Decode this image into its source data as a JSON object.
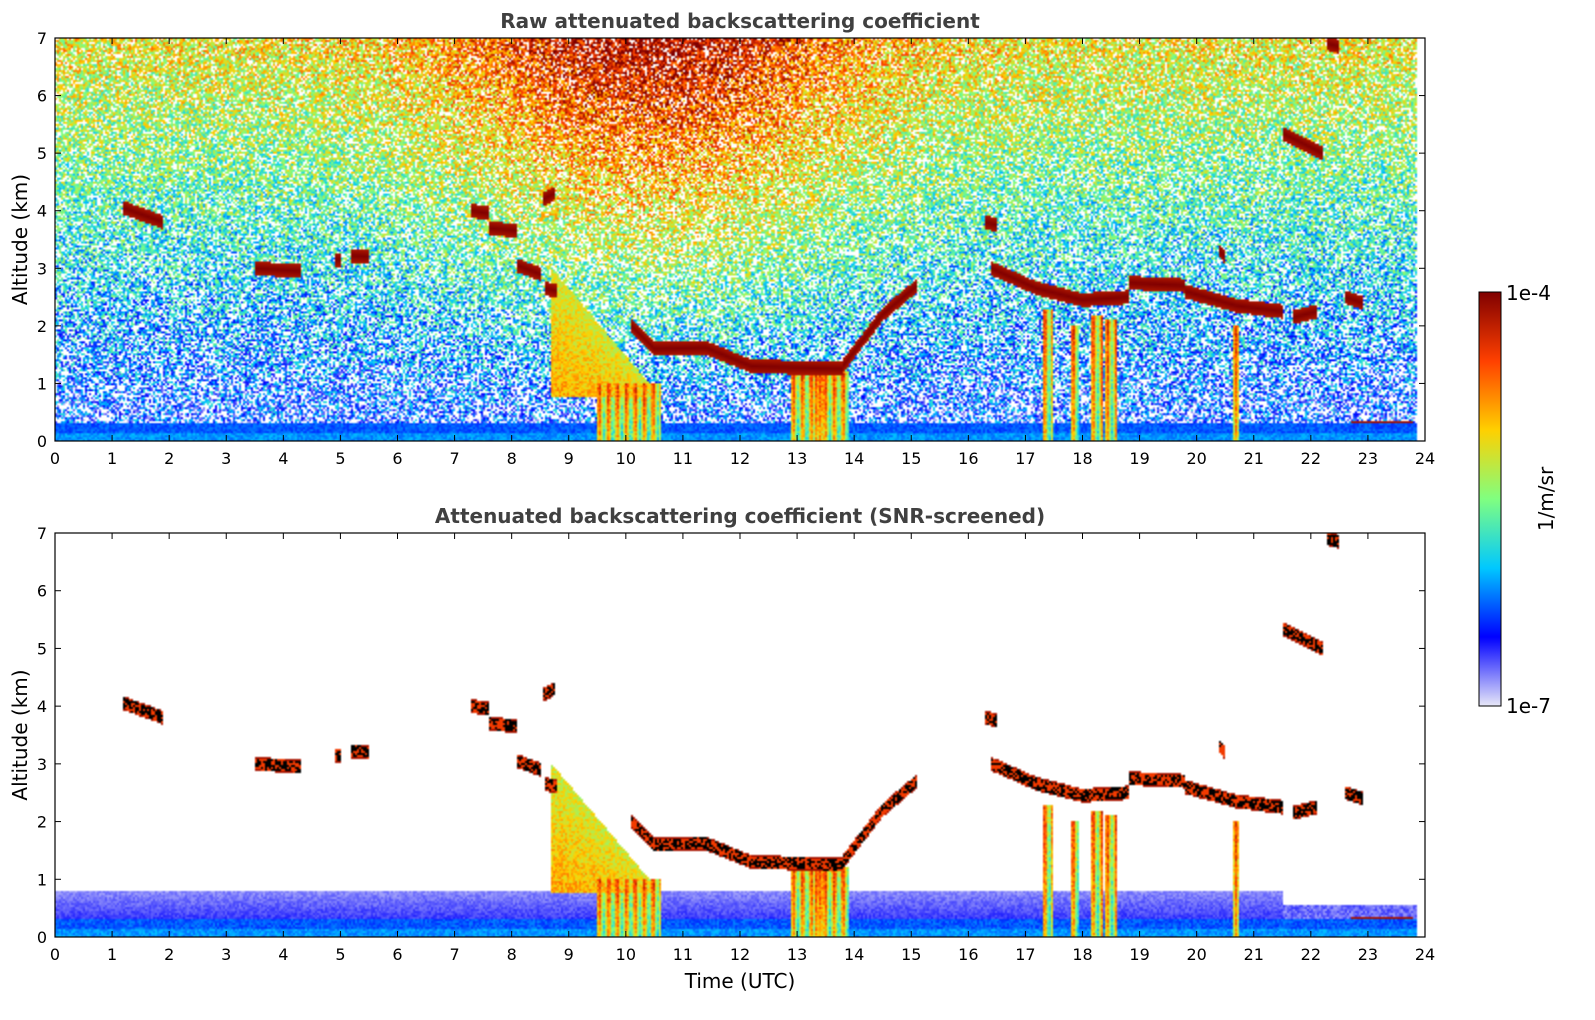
{
  "chart_data": [
    {
      "type": "heatmap",
      "title": "Raw attenuated backscattering coefficient",
      "xlabel": "",
      "ylabel": "Altitude (km)",
      "xlim": [
        0,
        24
      ],
      "ylim": [
        0,
        7
      ],
      "xticks": [
        "0",
        "1",
        "2",
        "3",
        "4",
        "5",
        "6",
        "7",
        "8",
        "9",
        "10",
        "11",
        "12",
        "13",
        "14",
        "15",
        "16",
        "17",
        "18",
        "19",
        "20",
        "21",
        "22",
        "23",
        "24"
      ],
      "yticks": [
        "0",
        "1",
        "2",
        "3",
        "4",
        "5",
        "6",
        "7"
      ],
      "screened": false,
      "grid": false
    },
    {
      "type": "heatmap",
      "title": "Attenuated backscattering coefficient (SNR-screened)",
      "xlabel": "Time (UTC)",
      "ylabel": "Altitude (km)",
      "xlim": [
        0,
        24
      ],
      "ylim": [
        0,
        7
      ],
      "xticks": [
        "0",
        "1",
        "2",
        "3",
        "4",
        "5",
        "6",
        "7",
        "8",
        "9",
        "10",
        "11",
        "12",
        "13",
        "14",
        "15",
        "16",
        "17",
        "18",
        "19",
        "20",
        "21",
        "22",
        "23",
        "24"
      ],
      "yticks": [
        "0",
        "1",
        "2",
        "3",
        "4",
        "5",
        "6",
        "7"
      ],
      "screened": true,
      "grid": false
    }
  ],
  "colorbar": {
    "label": "1/m/sr",
    "max_label": "1e-4",
    "min_label": "1e-7",
    "scale": "log",
    "colormap": "jet",
    "colors": [
      "#e8e8f8",
      "#0000ff",
      "#00c8ff",
      "#80ff80",
      "#ffd000",
      "#ff4000",
      "#800000"
    ]
  },
  "features": {
    "cloud_layers": [
      {
        "t0": 1.2,
        "t1": 1.9,
        "h0": 4.05,
        "h1": 3.8
      },
      {
        "t0": 3.5,
        "t1": 4.3,
        "h0": 3.0,
        "h1": 2.95
      },
      {
        "t0": 4.9,
        "t1": 5.0,
        "h0": 3.15,
        "h1": 3.15
      },
      {
        "t0": 5.2,
        "t1": 5.5,
        "h0": 3.22,
        "h1": 3.2
      },
      {
        "t0": 7.3,
        "t1": 7.6,
        "h0": 4.0,
        "h1": 3.95
      },
      {
        "t0": 7.6,
        "t1": 8.1,
        "h0": 3.7,
        "h1": 3.65
      },
      {
        "t0": 8.55,
        "t1": 8.75,
        "h0": 4.2,
        "h1": 4.3
      },
      {
        "t0": 8.1,
        "t1": 8.5,
        "h0": 3.05,
        "h1": 2.9
      },
      {
        "t0": 8.6,
        "t1": 8.8,
        "h0": 2.65,
        "h1": 2.6
      },
      {
        "t0": 10.1,
        "t1": 10.5,
        "h0": 2.0,
        "h1": 1.6
      },
      {
        "t0": 10.5,
        "t1": 11.4,
        "h0": 1.6,
        "h1": 1.62
      },
      {
        "t0": 11.4,
        "t1": 12.2,
        "h0": 1.62,
        "h1": 1.3
      },
      {
        "t0": 12.2,
        "t1": 13.8,
        "h0": 1.3,
        "h1": 1.25
      },
      {
        "t0": 13.8,
        "t1": 14.5,
        "h0": 1.3,
        "h1": 2.2
      },
      {
        "t0": 14.5,
        "t1": 15.1,
        "h0": 2.2,
        "h1": 2.7
      },
      {
        "t0": 16.3,
        "t1": 16.5,
        "h0": 3.8,
        "h1": 3.75
      },
      {
        "t0": 16.4,
        "t1": 17.2,
        "h0": 3.0,
        "h1": 2.65
      },
      {
        "t0": 17.2,
        "t1": 18.0,
        "h0": 2.65,
        "h1": 2.45
      },
      {
        "t0": 18.0,
        "t1": 18.8,
        "h0": 2.45,
        "h1": 2.5
      },
      {
        "t0": 18.8,
        "t1": 19.8,
        "h0": 2.75,
        "h1": 2.7
      },
      {
        "t0": 19.8,
        "t1": 20.7,
        "h0": 2.6,
        "h1": 2.35
      },
      {
        "t0": 20.7,
        "t1": 21.5,
        "h0": 2.35,
        "h1": 2.25
      },
      {
        "t0": 21.7,
        "t1": 22.1,
        "h0": 2.15,
        "h1": 2.25
      },
      {
        "t0": 22.6,
        "t1": 22.9,
        "h0": 2.5,
        "h1": 2.4
      },
      {
        "t0": 21.5,
        "t1": 22.2,
        "h0": 5.35,
        "h1": 5.0
      },
      {
        "t0": 22.3,
        "t1": 22.5,
        "h0": 6.9,
        "h1": 6.85
      },
      {
        "t0": 20.4,
        "t1": 20.5,
        "h0": 3.3,
        "h1": 3.2
      }
    ],
    "precip_shafts": [
      {
        "t0": 9.5,
        "t1": 10.6,
        "h0": 0.0,
        "h1": 1.0
      },
      {
        "t0": 12.9,
        "t1": 13.5,
        "h0": 0.0,
        "h1": 1.3
      },
      {
        "t0": 13.3,
        "t1": 13.9,
        "h0": 0.0,
        "h1": 1.2
      },
      {
        "t0": 17.3,
        "t1": 17.5,
        "h0": 0.0,
        "h1": 2.3
      },
      {
        "t0": 17.8,
        "t1": 17.95,
        "h0": 0.0,
        "h1": 2.0
      },
      {
        "t0": 18.15,
        "t1": 18.35,
        "h0": 0.0,
        "h1": 2.2
      },
      {
        "t0": 18.4,
        "t1": 18.6,
        "h0": 0.0,
        "h1": 2.1
      },
      {
        "t0": 20.65,
        "t1": 20.75,
        "h0": 0.0,
        "h1": 2.0
      }
    ],
    "aerosol_slopes": [
      {
        "t0": 8.7,
        "t1": 10.5,
        "h0": 3.0,
        "h1": 0.9
      }
    ],
    "surface_layer_top_km": 0.3,
    "low_layer": {
      "t0": 22.7,
      "t1": 23.8,
      "h": 0.3
    }
  }
}
